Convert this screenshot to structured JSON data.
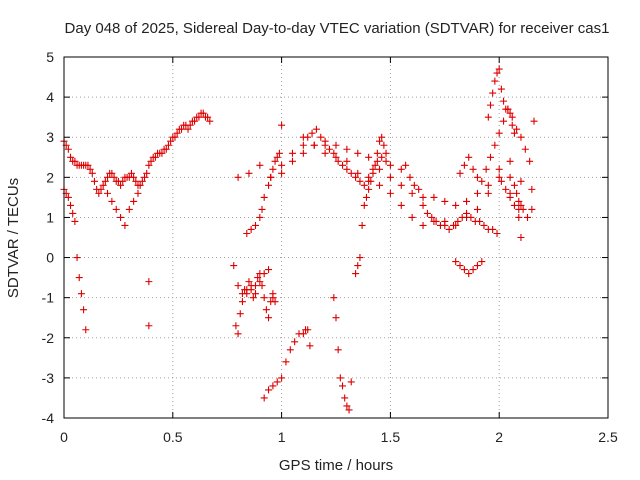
{
  "chart_data": {
    "type": "scatter",
    "title": "Day 048 of 2025, Sidereal Day-to-day VTEC variation (SDTVAR) for receiver cas1",
    "xlabel": "GPS time / hours",
    "ylabel": "SDTVAR / TECUs",
    "xlim": [
      0,
      2.5
    ],
    "ylim": [
      -4,
      5
    ],
    "xticks": [
      0,
      0.5,
      1,
      1.5,
      2,
      2.5
    ],
    "xtick_labels": [
      "0",
      "0.5",
      "1",
      "1.5",
      "2",
      "2.5"
    ],
    "yticks": [
      -4,
      -3,
      -2,
      -1,
      0,
      1,
      2,
      3,
      4,
      5
    ],
    "ytick_labels": [
      "-4",
      "-3",
      "-2",
      "-1",
      "0",
      "1",
      "2",
      "3",
      "4",
      "5"
    ],
    "grid": true,
    "marker": "plus",
    "series": [
      {
        "name": "SDTVAR",
        "color": "#dd0000",
        "x": [
          0.0,
          0.01,
          0.02,
          0.03,
          0.04,
          0.05,
          0.06,
          0.07,
          0.08,
          0.09,
          0.1,
          0.11,
          0.12,
          0.13,
          0.14,
          0.15,
          0.16,
          0.17,
          0.18,
          0.19,
          0.2,
          0.21,
          0.22,
          0.23,
          0.24,
          0.25,
          0.26,
          0.27,
          0.28,
          0.29,
          0.3,
          0.31,
          0.32,
          0.33,
          0.34,
          0.35,
          0.36,
          0.37,
          0.38,
          0.39,
          0.4,
          0.41,
          0.42,
          0.43,
          0.44,
          0.45,
          0.46,
          0.47,
          0.48,
          0.49,
          0.5,
          0.51,
          0.52,
          0.53,
          0.54,
          0.55,
          0.56,
          0.57,
          0.58,
          0.59,
          0.6,
          0.61,
          0.62,
          0.63,
          0.64,
          0.65,
          0.66,
          0.67,
          0.0,
          0.01,
          0.02,
          0.03,
          0.04,
          0.05,
          0.06,
          0.07,
          0.08,
          0.09,
          0.1,
          0.2,
          0.22,
          0.24,
          0.26,
          0.28,
          0.3,
          0.32,
          0.34,
          0.39,
          0.39,
          0.78,
          0.79,
          0.8,
          0.81,
          0.82,
          0.83,
          0.84,
          0.85,
          0.86,
          0.87,
          0.88,
          0.89,
          0.9,
          0.91,
          0.92,
          0.93,
          0.94,
          0.95,
          0.96,
          0.97,
          0.8,
          0.82,
          0.84,
          0.86,
          0.88,
          0.9,
          0.92,
          0.94,
          0.96,
          0.84,
          0.86,
          0.88,
          0.9,
          0.91,
          0.92,
          0.94,
          0.95,
          0.96,
          0.97,
          0.98,
          0.99,
          1.0,
          0.92,
          0.94,
          0.96,
          0.98,
          1.0,
          1.02,
          1.04,
          1.06,
          1.08,
          1.1,
          1.11,
          1.12,
          1.13,
          0.8,
          0.85,
          0.9,
          0.95,
          1.0,
          1.05,
          1.1,
          1.15,
          1.2,
          1.25,
          1.3,
          1.35,
          1.4,
          1.45,
          1.5,
          1.55,
          1.6,
          1.65,
          1.7,
          1.75,
          1.8,
          1.85,
          1.9,
          1.95,
          2.0,
          2.05,
          2.1,
          2.15,
          1.0,
          1.05,
          1.1,
          1.15,
          1.2,
          1.25,
          1.3,
          1.35,
          1.4,
          1.45,
          1.5,
          1.55,
          1.6,
          1.65,
          1.7,
          1.75,
          1.8,
          1.85,
          1.9,
          1.95,
          2.0,
          2.05,
          2.1,
          1.1,
          1.12,
          1.14,
          1.16,
          1.18,
          1.2,
          1.22,
          1.24,
          1.26,
          1.28,
          1.3,
          1.32,
          1.34,
          1.36,
          1.38,
          1.4,
          1.42,
          1.44,
          1.46,
          1.48,
          1.5,
          1.24,
          1.25,
          1.26,
          1.27,
          1.28,
          1.29,
          1.3,
          1.31,
          1.32,
          1.34,
          1.35,
          1.36,
          1.37,
          1.38,
          1.39,
          1.4,
          1.41,
          1.42,
          1.43,
          1.44,
          1.45,
          1.46,
          1.47,
          1.48,
          1.55,
          1.57,
          1.59,
          1.61,
          1.63,
          1.65,
          1.67,
          1.69,
          1.71,
          1.73,
          1.75,
          1.77,
          1.79,
          1.81,
          1.83,
          1.85,
          1.87,
          1.89,
          1.91,
          1.93,
          1.95,
          1.97,
          1.99,
          2.01,
          2.03,
          2.05,
          2.07,
          2.09,
          1.82,
          1.84,
          1.86,
          1.88,
          1.9,
          1.92,
          1.94,
          1.96,
          1.98,
          2.0,
          2.02,
          2.04,
          2.06,
          2.08,
          2.1,
          2.12,
          2.14,
          1.8,
          1.82,
          1.84,
          1.86,
          1.88,
          1.9,
          1.92,
          1.95,
          1.96,
          1.97,
          1.98,
          1.99,
          2.0,
          2.01,
          2.02,
          2.03,
          2.04,
          2.05,
          2.06,
          2.07,
          2.08,
          2.09,
          2.1,
          2.05,
          2.07,
          2.09,
          2.11,
          2.13,
          2.15,
          2.16
        ],
        "y": [
          2.9,
          2.8,
          2.7,
          2.5,
          2.4,
          2.4,
          2.3,
          2.3,
          2.3,
          2.3,
          2.3,
          2.3,
          2.2,
          2.1,
          1.9,
          1.7,
          1.6,
          1.7,
          1.8,
          1.9,
          2.0,
          2.1,
          2.1,
          2.0,
          1.9,
          1.9,
          1.8,
          1.9,
          2.0,
          2.0,
          2.0,
          2.1,
          2.0,
          1.9,
          1.8,
          1.8,
          1.9,
          2.0,
          2.1,
          2.3,
          2.4,
          2.5,
          2.5,
          2.6,
          2.6,
          2.6,
          2.7,
          2.7,
          2.8,
          2.9,
          3.0,
          3.0,
          3.1,
          3.2,
          3.2,
          3.3,
          3.3,
          3.2,
          3.3,
          3.4,
          3.4,
          3.5,
          3.5,
          3.6,
          3.6,
          3.5,
          3.5,
          3.4,
          1.7,
          1.6,
          1.5,
          1.3,
          1.1,
          0.9,
          0.0,
          -0.5,
          -0.9,
          -1.3,
          -1.8,
          1.6,
          1.4,
          1.2,
          1.0,
          0.8,
          1.2,
          1.4,
          1.6,
          -0.6,
          -1.7,
          -0.2,
          -1.7,
          -1.9,
          -1.4,
          -1.1,
          -0.8,
          -0.9,
          -0.6,
          -0.8,
          -1.0,
          -0.7,
          -0.5,
          -0.4,
          -0.7,
          -1.0,
          -1.3,
          -1.5,
          -1.1,
          -0.9,
          -1.1,
          -0.7,
          -0.9,
          -0.8,
          -0.7,
          -0.9,
          -0.6,
          -0.4,
          -0.3,
          -1.0,
          0.6,
          0.7,
          0.8,
          1.0,
          1.2,
          1.5,
          1.8,
          2.0,
          2.2,
          2.4,
          2.5,
          2.6,
          2.3,
          -3.5,
          -3.3,
          -3.2,
          -3.1,
          -3.0,
          -2.6,
          -2.3,
          -2.1,
          -1.9,
          -1.9,
          -1.8,
          -1.8,
          -2.2,
          2.0,
          2.1,
          2.3,
          2.0,
          2.1,
          2.4,
          2.6,
          2.8,
          2.9,
          2.8,
          2.7,
          2.6,
          2.5,
          2.2,
          2.0,
          1.8,
          1.6,
          1.5,
          1.5,
          1.4,
          1.3,
          1.4,
          1.6,
          1.8,
          2.0,
          2.0,
          1.9,
          1.7,
          3.3,
          2.6,
          3.0,
          2.8,
          2.6,
          2.5,
          2.4,
          2.1,
          2.0,
          1.8,
          1.6,
          1.3,
          1.0,
          0.8,
          0.9,
          0.9,
          0.8,
          1.0,
          1.2,
          1.6,
          2.2,
          2.4,
          1.3,
          2.8,
          3.0,
          3.1,
          3.2,
          3.0,
          2.8,
          2.7,
          2.6,
          2.4,
          2.3,
          2.2,
          2.1,
          2.0,
          1.9,
          1.8,
          1.9,
          2.2,
          2.4,
          2.5,
          2.4,
          2.3,
          -1.0,
          -1.5,
          -2.3,
          -3.0,
          -3.2,
          -3.5,
          -3.7,
          -3.8,
          -3.1,
          -0.4,
          -0.2,
          0.0,
          0.8,
          1.3,
          1.5,
          1.7,
          1.9,
          2.1,
          2.3,
          2.6,
          2.9,
          3.0,
          2.8,
          2.6,
          2.2,
          2.3,
          2.0,
          1.8,
          1.7,
          1.3,
          1.1,
          1.0,
          0.9,
          0.8,
          0.8,
          0.7,
          0.8,
          0.9,
          1.0,
          1.1,
          1.0,
          0.9,
          0.9,
          0.8,
          0.7,
          0.7,
          0.6,
          1.9,
          1.7,
          1.5,
          1.3,
          1.2,
          2.1,
          2.3,
          2.5,
          2.2,
          2.0,
          1.9,
          2.2,
          2.5,
          2.8,
          3.1,
          3.4,
          3.7,
          3.5,
          3.2,
          3.0,
          2.7,
          2.4,
          -0.1,
          -0.2,
          -0.3,
          -0.4,
          -0.3,
          -0.2,
          -0.1,
          3.5,
          3.8,
          4.1,
          4.4,
          4.6,
          4.7,
          4.2,
          3.9,
          3.7,
          3.7,
          3.6,
          3.3,
          3.1,
          1.6,
          1.0,
          0.5,
          1.6,
          1.8,
          1.4,
          1.2,
          1.0,
          1.2,
          3.4
        ]
      }
    ]
  }
}
